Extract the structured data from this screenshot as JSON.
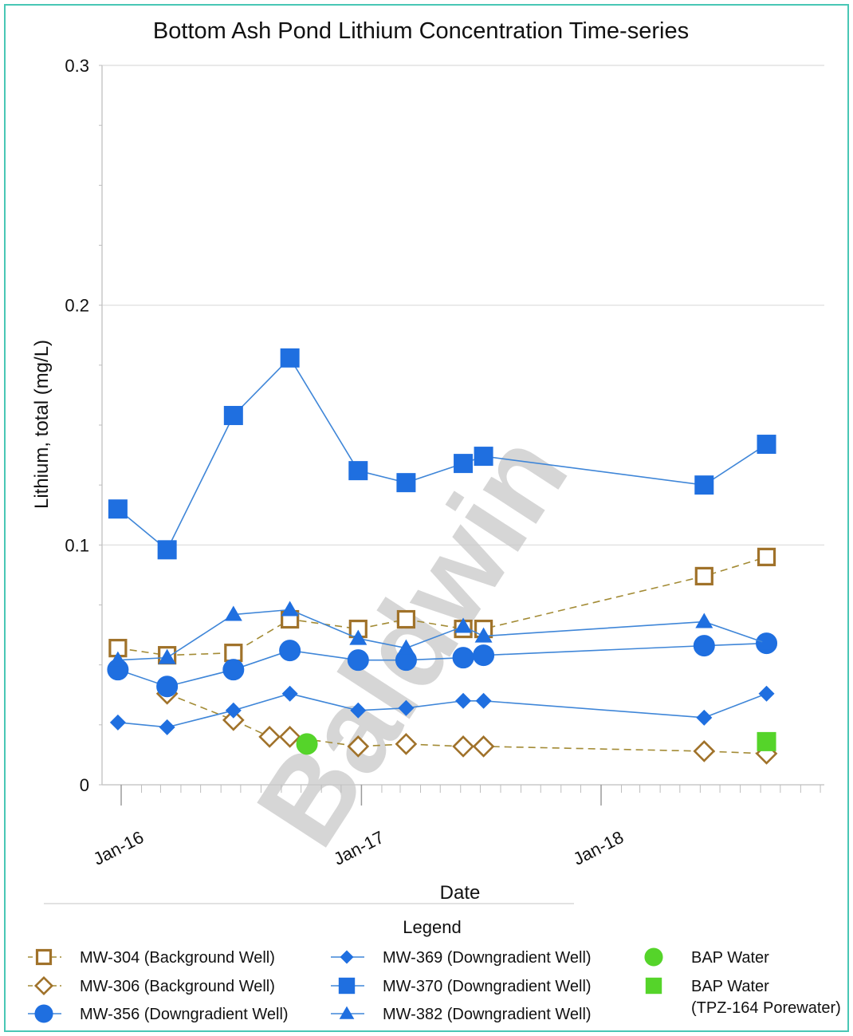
{
  "chart_data": {
    "type": "scatter",
    "title": "Bottom Ash Pond Lithium Concentration Time-series",
    "xlabel": "Date",
    "ylabel": "Lithium, total (mg/L)",
    "ylim": [
      0,
      0.3
    ],
    "yticks": [
      "0",
      "0.1",
      "0.2",
      "0.3"
    ],
    "xlim": [
      "2015-12-01",
      "2018-12-31"
    ],
    "xticks": [
      {
        "label": "Jan-16",
        "date": "2016-01-01"
      },
      {
        "label": "Jan-17",
        "date": "2017-01-01"
      },
      {
        "label": "Jan-18",
        "date": "2018-01-01"
      }
    ],
    "grid": "horizontal",
    "legend_title": "Legend",
    "legend_position": "bottom",
    "watermark": "Baldwin",
    "series": [
      {
        "name": "MW-304 (Background Well)",
        "marker": "open-square",
        "color": "#a0722a",
        "line": "dashed",
        "points": [
          [
            "2015-12-27",
            0.057
          ],
          [
            "2016-03-11",
            0.054
          ],
          [
            "2016-06-20",
            0.055
          ],
          [
            "2016-09-14",
            0.069
          ],
          [
            "2016-12-27",
            0.065
          ],
          [
            "2017-03-10",
            0.069
          ],
          [
            "2017-06-05",
            0.065
          ],
          [
            "2017-07-06",
            0.065
          ],
          [
            "2018-06-07",
            0.087
          ],
          [
            "2018-09-10",
            0.095
          ]
        ]
      },
      {
        "name": "MW-306 (Background Well)",
        "marker": "open-diamond",
        "color": "#a0722a",
        "line": "dashed",
        "points": [
          [
            "2016-03-11",
            0.038
          ],
          [
            "2016-06-20",
            0.027
          ],
          [
            "2016-08-14",
            0.02
          ],
          [
            "2016-09-14",
            0.02
          ],
          [
            "2016-12-27",
            0.016
          ],
          [
            "2017-03-10",
            0.017
          ],
          [
            "2017-06-05",
            0.016
          ],
          [
            "2017-07-06",
            0.016
          ],
          [
            "2018-06-07",
            0.014
          ],
          [
            "2018-09-10",
            0.013
          ]
        ]
      },
      {
        "name": "MW-356 (Downgradient Well)",
        "marker": "circle",
        "color": "#1f6fe0",
        "line": "solid",
        "points": [
          [
            "2015-12-27",
            0.048
          ],
          [
            "2016-03-11",
            0.041
          ],
          [
            "2016-06-20",
            0.048
          ],
          [
            "2016-09-14",
            0.056
          ],
          [
            "2016-12-27",
            0.052
          ],
          [
            "2017-03-10",
            0.052
          ],
          [
            "2017-06-05",
            0.053
          ],
          [
            "2017-07-06",
            0.054
          ],
          [
            "2018-06-07",
            0.058
          ],
          [
            "2018-09-10",
            0.059
          ]
        ]
      },
      {
        "name": "MW-369 (Downgradient Well)",
        "marker": "diamond",
        "color": "#1f6fe0",
        "line": "solid",
        "points": [
          [
            "2015-12-27",
            0.026
          ],
          [
            "2016-03-11",
            0.024
          ],
          [
            "2016-06-20",
            0.031
          ],
          [
            "2016-09-14",
            0.038
          ],
          [
            "2016-12-27",
            0.031
          ],
          [
            "2017-03-10",
            0.032
          ],
          [
            "2017-06-05",
            0.035
          ],
          [
            "2017-07-06",
            0.035
          ],
          [
            "2018-06-07",
            0.028
          ],
          [
            "2018-09-10",
            0.038
          ]
        ]
      },
      {
        "name": "MW-370 (Downgradient Well)",
        "marker": "square",
        "color": "#1f6fe0",
        "line": "solid",
        "points": [
          [
            "2015-12-27",
            0.115
          ],
          [
            "2016-03-11",
            0.098
          ],
          [
            "2016-06-20",
            0.154
          ],
          [
            "2016-09-14",
            0.178
          ],
          [
            "2016-12-27",
            0.131
          ],
          [
            "2017-03-10",
            0.126
          ],
          [
            "2017-06-05",
            0.134
          ],
          [
            "2017-07-06",
            0.137
          ],
          [
            "2018-06-07",
            0.125
          ],
          [
            "2018-09-10",
            0.142
          ]
        ]
      },
      {
        "name": "MW-382 (Downgradient Well)",
        "marker": "triangle",
        "color": "#1f6fe0",
        "line": "solid",
        "points": [
          [
            "2015-12-27",
            0.052
          ],
          [
            "2016-03-11",
            0.053
          ],
          [
            "2016-06-20",
            0.071
          ],
          [
            "2016-09-14",
            0.073
          ],
          [
            "2016-12-27",
            0.061
          ],
          [
            "2017-03-10",
            0.057
          ],
          [
            "2017-06-05",
            0.066
          ],
          [
            "2017-07-06",
            0.062
          ],
          [
            "2018-06-07",
            0.068
          ],
          [
            "2018-09-10",
            0.059
          ]
        ]
      },
      {
        "name": "BAP Water",
        "marker": "circle",
        "color": "#55d42a",
        "line": "none",
        "points": [
          [
            "2016-10-10",
            0.017
          ]
        ]
      },
      {
        "name": "BAP Water\n(TPZ-164 Porewater)",
        "marker": "square",
        "color": "#55d42a",
        "line": "none",
        "points": [
          [
            "2018-09-10",
            0.018
          ]
        ]
      }
    ]
  }
}
